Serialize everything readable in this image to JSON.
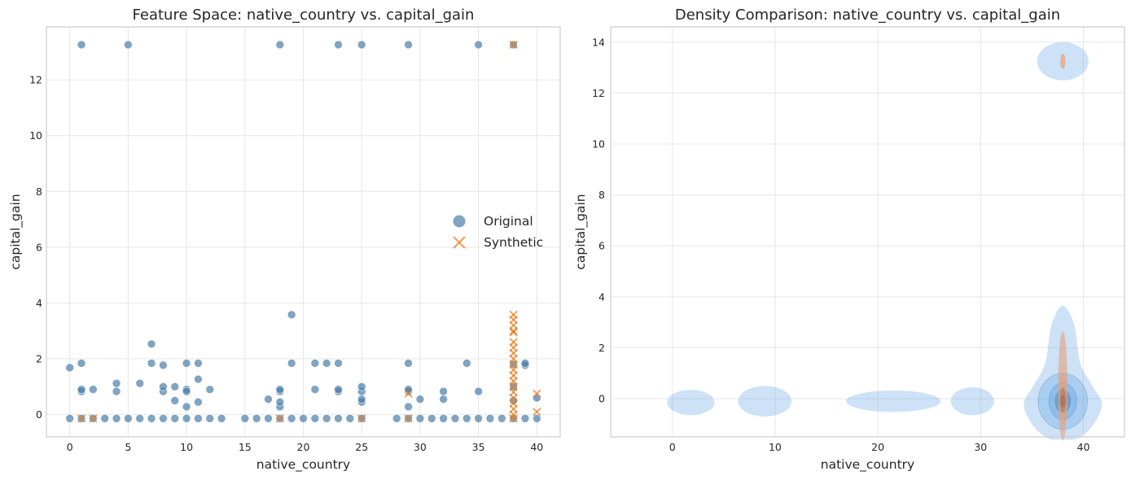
{
  "chart_data": [
    {
      "type": "scatter",
      "title": "Feature Space: native_country vs. capital_gain",
      "xlabel": "native_country",
      "ylabel": "capital_gain",
      "xlim": [
        -2,
        42
      ],
      "ylim": [
        -0.8,
        13.9
      ],
      "xticks": [
        "0",
        "5",
        "10",
        "15",
        "20",
        "25",
        "30",
        "35",
        "40"
      ],
      "yticks": [
        "0",
        "2",
        "4",
        "6",
        "8",
        "10",
        "12"
      ],
      "grid": true,
      "legend": "center-right",
      "series": [
        {
          "name": "Original",
          "color": "#4a7ea8",
          "marker": "circle",
          "points": [
            [
              0,
              -0.14
            ],
            [
              0,
              1.68
            ],
            [
              1,
              -0.14
            ],
            [
              1,
              0.83
            ],
            [
              1,
              0.9
            ],
            [
              1,
              1.84
            ],
            [
              1,
              13.26
            ],
            [
              2,
              -0.14
            ],
            [
              2,
              0.9
            ],
            [
              3,
              -0.14
            ],
            [
              4,
              -0.14
            ],
            [
              4,
              0.83
            ],
            [
              4,
              1.12
            ],
            [
              5,
              -0.14
            ],
            [
              5,
              13.26
            ],
            [
              6,
              -0.14
            ],
            [
              6,
              1.12
            ],
            [
              7,
              -0.14
            ],
            [
              7,
              1.84
            ],
            [
              7,
              2.53
            ],
            [
              8,
              -0.14
            ],
            [
              8,
              0.83
            ],
            [
              8,
              1.0
            ],
            [
              8,
              1.77
            ],
            [
              9,
              -0.14
            ],
            [
              9,
              0.5
            ],
            [
              9,
              1.0
            ],
            [
              10,
              -0.14
            ],
            [
              10,
              0.28
            ],
            [
              10,
              0.9
            ],
            [
              10,
              0.83
            ],
            [
              10,
              1.84
            ],
            [
              11,
              -0.14
            ],
            [
              11,
              0.45
            ],
            [
              11,
              1.27
            ],
            [
              11,
              1.84
            ],
            [
              12,
              -0.14
            ],
            [
              12,
              0.9
            ],
            [
              13,
              -0.14
            ],
            [
              15,
              -0.14
            ],
            [
              16,
              -0.14
            ],
            [
              17,
              -0.14
            ],
            [
              17,
              0.55
            ],
            [
              18,
              -0.14
            ],
            [
              18,
              0.28
            ],
            [
              18,
              0.45
            ],
            [
              18,
              0.83
            ],
            [
              18,
              0.9
            ],
            [
              18,
              13.26
            ],
            [
              19,
              -0.14
            ],
            [
              19,
              1.84
            ],
            [
              19,
              3.58
            ],
            [
              20,
              -0.14
            ],
            [
              21,
              -0.14
            ],
            [
              21,
              0.9
            ],
            [
              21,
              1.84
            ],
            [
              22,
              -0.14
            ],
            [
              22,
              1.84
            ],
            [
              23,
              -0.14
            ],
            [
              23,
              0.83
            ],
            [
              23,
              0.9
            ],
            [
              23,
              1.84
            ],
            [
              23,
              13.26
            ],
            [
              24,
              -0.14
            ],
            [
              25,
              -0.14
            ],
            [
              25,
              0.45
            ],
            [
              25,
              0.55
            ],
            [
              25,
              0.83
            ],
            [
              25,
              1.0
            ],
            [
              25,
              13.26
            ],
            [
              28,
              -0.14
            ],
            [
              29,
              -0.14
            ],
            [
              29,
              0.28
            ],
            [
              29,
              0.83
            ],
            [
              29,
              0.9
            ],
            [
              29,
              1.84
            ],
            [
              29,
              13.26
            ],
            [
              30,
              -0.14
            ],
            [
              30,
              0.55
            ],
            [
              31,
              -0.14
            ],
            [
              32,
              -0.14
            ],
            [
              32,
              0.55
            ],
            [
              32,
              0.83
            ],
            [
              33,
              -0.14
            ],
            [
              34,
              -0.14
            ],
            [
              34,
              1.84
            ],
            [
              35,
              -0.14
            ],
            [
              35,
              0.83
            ],
            [
              35,
              13.26
            ],
            [
              36,
              -0.14
            ],
            [
              37,
              -0.14
            ],
            [
              38,
              -0.14
            ],
            [
              38,
              0.5
            ],
            [
              38,
              1.0
            ],
            [
              38,
              1.8
            ],
            [
              38,
              13.26
            ],
            [
              39,
              -0.14
            ],
            [
              39,
              1.77
            ],
            [
              39,
              1.84
            ],
            [
              40,
              -0.14
            ],
            [
              40,
              0.6
            ]
          ]
        },
        {
          "name": "Synthetic",
          "color": "#e67e22",
          "marker": "x",
          "points": [
            [
              1,
              -0.14
            ],
            [
              2,
              -0.14
            ],
            [
              18,
              -0.14
            ],
            [
              25,
              -0.14
            ],
            [
              29,
              -0.14
            ],
            [
              29,
              0.75
            ],
            [
              40,
              0.1
            ],
            [
              40,
              0.75
            ],
            [
              38,
              13.26
            ],
            [
              38,
              3.58
            ],
            [
              38,
              3.2
            ],
            [
              38,
              2.95
            ],
            [
              38,
              -0.14
            ],
            [
              38,
              0.0
            ],
            [
              38,
              0.2
            ],
            [
              38,
              0.4
            ],
            [
              38,
              0.6
            ],
            [
              38,
              0.8
            ],
            [
              38,
              1.0
            ],
            [
              38,
              1.2
            ],
            [
              38,
              1.4
            ],
            [
              38,
              1.6
            ],
            [
              38,
              1.8
            ],
            [
              38,
              2.0
            ],
            [
              38,
              2.2
            ],
            [
              38,
              2.4
            ],
            [
              38,
              2.6
            ],
            [
              38,
              3.0
            ],
            [
              38,
              3.4
            ]
          ]
        }
      ]
    },
    {
      "type": "density",
      "title": "Density Comparison: native_country vs. capital_gain",
      "xlabel": "native_country",
      "ylabel": "capital_gain",
      "xlim": [
        -6,
        44
      ],
      "ylim": [
        -1.5,
        14.6
      ],
      "xticks": [
        "0",
        "10",
        "20",
        "30",
        "40"
      ],
      "yticks": [
        "0",
        "2",
        "4",
        "6",
        "8",
        "10",
        "12",
        "14"
      ],
      "grid": true,
      "series": [
        {
          "name": "Original",
          "color": "#5aa0e0",
          "regions": [
            {
              "kind": "ellipse",
              "cx": 38,
              "cy": 13.25,
              "rx": 2.5,
              "ry": 0.75
            },
            {
              "kind": "ellipse",
              "cx": 1.8,
              "cy": -0.15,
              "rx": 2.3,
              "ry": 0.5
            },
            {
              "kind": "ellipse",
              "cx": 9,
              "cy": -0.1,
              "rx": 2.6,
              "ry": 0.6
            },
            {
              "kind": "ellipse",
              "cx": 21.5,
              "cy": -0.1,
              "rx": 4.6,
              "ry": 0.42
            },
            {
              "kind": "ellipse",
              "cx": 29.2,
              "cy": -0.1,
              "rx": 2.1,
              "ry": 0.55
            },
            {
              "kind": "ellipse",
              "cx": 38,
              "cy": -0.1,
              "rx": 2.4,
              "ry": 1.1
            },
            {
              "kind": "ellipse",
              "cx": 38,
              "cy": -0.1,
              "rx": 1.35,
              "ry": 0.72
            },
            {
              "kind": "ellipse",
              "cx": 38,
              "cy": -0.1,
              "rx": 0.75,
              "ry": 0.45
            },
            {
              "kind": "ellipse",
              "cx": 38,
              "cy": -0.1,
              "rx": 0.35,
              "ry": 0.25
            }
          ],
          "outline": [
            [
              38,
              3.65
            ],
            [
              36.9,
              2.9
            ],
            [
              36.3,
              1.4
            ],
            [
              35.2,
              0.55
            ],
            [
              34.2,
              -0.2
            ],
            [
              35.0,
              -1.0
            ],
            [
              36.5,
              -1.55
            ],
            [
              38,
              -1.6
            ],
            [
              39.5,
              -1.55
            ],
            [
              41.0,
              -1.0
            ],
            [
              41.8,
              -0.2
            ],
            [
              40.8,
              0.55
            ],
            [
              39.7,
              1.4
            ],
            [
              39.1,
              2.9
            ]
          ]
        },
        {
          "name": "Synthetic",
          "color": "#e8a07a",
          "regions": [
            {
              "kind": "ellipse",
              "cx": 38,
              "cy": 13.25,
              "rx": 0.25,
              "ry": 0.3
            },
            {
              "kind": "ellipse",
              "cx": 38,
              "cy": 0.5,
              "rx": 0.45,
              "ry": 2.15
            },
            {
              "kind": "ellipse",
              "cx": 38,
              "cy": 0.0,
              "rx": 0.4,
              "ry": 1.0
            },
            {
              "kind": "ellipse",
              "cx": 38,
              "cy": -0.05,
              "rx": 0.3,
              "ry": 0.5
            },
            {
              "kind": "ellipse",
              "cx": 38,
              "cy": -0.1,
              "rx": 0.2,
              "ry": 0.25
            }
          ]
        }
      ]
    }
  ]
}
